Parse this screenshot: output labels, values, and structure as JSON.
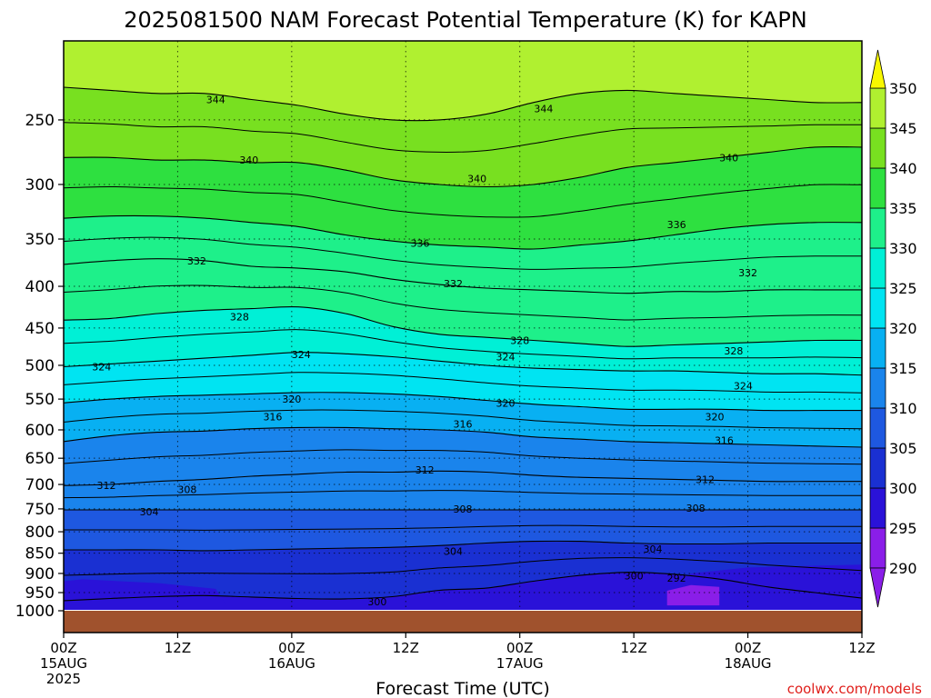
{
  "chart_data": {
    "type": "contour",
    "title": "2025081500 NAM Forecast Potential Temperature (K) for KAPN",
    "xlabel": "Forecast Time (UTC)",
    "credit": "coolwx.com/models",
    "y_axis": {
      "scale": "log-pressure",
      "ticks": [
        250,
        300,
        350,
        400,
        450,
        500,
        550,
        600,
        650,
        700,
        750,
        800,
        850,
        900,
        950,
        1000
      ],
      "range": [
        1000,
        200
      ]
    },
    "x_axis": {
      "range_hours": [
        0,
        84
      ],
      "ticks": [
        {
          "hour": 0,
          "lines": [
            "00Z",
            "15AUG",
            "2025"
          ]
        },
        {
          "hour": 12,
          "lines": [
            "12Z"
          ]
        },
        {
          "hour": 24,
          "lines": [
            "00Z",
            "16AUG"
          ]
        },
        {
          "hour": 36,
          "lines": [
            "12Z"
          ]
        },
        {
          "hour": 48,
          "lines": [
            "00Z",
            "17AUG"
          ]
        },
        {
          "hour": 60,
          "lines": [
            "12Z"
          ]
        },
        {
          "hour": 72,
          "lines": [
            "00Z",
            "18AUG"
          ]
        },
        {
          "hour": 84,
          "lines": [
            "12Z"
          ]
        }
      ]
    },
    "colorbar": {
      "levels": [
        290,
        295,
        300,
        305,
        310,
        315,
        320,
        325,
        330,
        335,
        340,
        345,
        350
      ],
      "colors": [
        "#8a1ee8",
        "#2a12d8",
        "#1a30d2",
        "#1e58e0",
        "#1a84ec",
        "#08b0f2",
        "#00e4f2",
        "#00f0d6",
        "#1ef08a",
        "#2ee040",
        "#78e020",
        "#b0f030",
        "#f8f800"
      ]
    },
    "isotherms": [
      {
        "value": 300,
        "p": [
          972,
          966,
          961,
          958,
          962,
          966,
          967,
          961,
          944,
          938,
          920,
          905,
          897,
          902,
          915,
          935,
          950,
          965
        ]
      },
      {
        "value": 304,
        "p": [
          842,
          842,
          842,
          844,
          842,
          840,
          838,
          836,
          832,
          826,
          822,
          822,
          826,
          828,
          828,
          826,
          826,
          826
        ]
      },
      {
        "value": 308,
        "p": [
          752,
          752,
          752,
          752,
          752,
          752,
          752,
          752,
          752,
          752,
          752,
          752,
          752,
          752,
          752,
          752,
          752,
          752
        ]
      },
      {
        "value": 312,
        "p": [
          702,
          700,
          694,
          690,
          684,
          680,
          676,
          676,
          674,
          676,
          682,
          686,
          688,
          690,
          692,
          694,
          694,
          694
        ]
      },
      {
        "value": 316,
        "p": [
          620,
          610,
          604,
          602,
          598,
          596,
          596,
          598,
          600,
          604,
          612,
          616,
          620,
          622,
          624,
          626,
          628,
          630
        ]
      },
      {
        "value": 320,
        "p": [
          556,
          550,
          546,
          544,
          542,
          540,
          540,
          542,
          546,
          552,
          558,
          562,
          566,
          566,
          566,
          568,
          568,
          568
        ]
      },
      {
        "value": 324,
        "p": [
          502,
          498,
          494,
          490,
          486,
          482,
          484,
          488,
          494,
          500,
          504,
          506,
          508,
          508,
          510,
          512,
          512,
          514
        ]
      },
      {
        "value": 328,
        "p": [
          440,
          438,
          432,
          428,
          426,
          424,
          432,
          448,
          458,
          462,
          466,
          470,
          474,
          472,
          470,
          468,
          466,
          466
        ]
      },
      {
        "value": 332,
        "p": [
          376,
          372,
          370,
          372,
          378,
          380,
          384,
          392,
          398,
          402,
          404,
          406,
          408,
          406,
          406,
          404,
          404,
          404
        ]
      },
      {
        "value": 336,
        "p": [
          330,
          328,
          328,
          330,
          334,
          338,
          346,
          352,
          356,
          358,
          360,
          356,
          352,
          346,
          340,
          336,
          334,
          334
        ]
      },
      {
        "value": 340,
        "p": [
          278,
          278,
          280,
          280,
          282,
          282,
          288,
          296,
          300,
          302,
          300,
          294,
          286,
          282,
          278,
          274,
          270,
          270
        ]
      },
      {
        "value": 344,
        "p": [
          228,
          230,
          232,
          232,
          236,
          240,
          246,
          250,
          250,
          246,
          238,
          232,
          230,
          232,
          234,
          236,
          238,
          238
        ]
      }
    ],
    "contour_labels": [
      {
        "text": "344",
        "hour": 16.0,
        "p": 236
      },
      {
        "text": "340",
        "hour": 19.5,
        "p": 280
      },
      {
        "text": "344",
        "hour": 50.5,
        "p": 242
      },
      {
        "text": "340",
        "hour": 43.5,
        "p": 295
      },
      {
        "text": "340",
        "hour": 70.0,
        "p": 278
      },
      {
        "text": "336",
        "hour": 37.5,
        "p": 354
      },
      {
        "text": "336",
        "hour": 64.5,
        "p": 336
      },
      {
        "text": "332",
        "hour": 14.0,
        "p": 372
      },
      {
        "text": "332",
        "hour": 41.0,
        "p": 397
      },
      {
        "text": "332",
        "hour": 72.0,
        "p": 385
      },
      {
        "text": "328",
        "hour": 18.5,
        "p": 436
      },
      {
        "text": "328",
        "hour": 48.0,
        "p": 466
      },
      {
        "text": "328",
        "hour": 70.5,
        "p": 480
      },
      {
        "text": "324",
        "hour": 4.0,
        "p": 502
      },
      {
        "text": "324",
        "hour": 25.0,
        "p": 485
      },
      {
        "text": "324",
        "hour": 46.5,
        "p": 488
      },
      {
        "text": "324",
        "hour": 71.5,
        "p": 530
      },
      {
        "text": "320",
        "hour": 24.0,
        "p": 550
      },
      {
        "text": "320",
        "hour": 46.5,
        "p": 556
      },
      {
        "text": "320",
        "hour": 68.5,
        "p": 578
      },
      {
        "text": "316",
        "hour": 22.0,
        "p": 578
      },
      {
        "text": "316",
        "hour": 42.0,
        "p": 590
      },
      {
        "text": "316",
        "hour": 69.5,
        "p": 618
      },
      {
        "text": "312",
        "hour": 4.5,
        "p": 702
      },
      {
        "text": "312",
        "hour": 38.0,
        "p": 672
      },
      {
        "text": "312",
        "hour": 67.5,
        "p": 690
      },
      {
        "text": "308",
        "hour": 13.0,
        "p": 710
      },
      {
        "text": "308",
        "hour": 42.0,
        "p": 750
      },
      {
        "text": "308",
        "hour": 66.5,
        "p": 748
      },
      {
        "text": "304",
        "hour": 9.0,
        "p": 756
      },
      {
        "text": "304",
        "hour": 41.0,
        "p": 845
      },
      {
        "text": "304",
        "hour": 62.0,
        "p": 840
      },
      {
        "text": "300",
        "hour": 33.0,
        "p": 975
      },
      {
        "text": "300",
        "hour": 60.0,
        "p": 906
      },
      {
        "text": "292",
        "hour": 64.5,
        "p": 912
      }
    ],
    "grid": true
  }
}
